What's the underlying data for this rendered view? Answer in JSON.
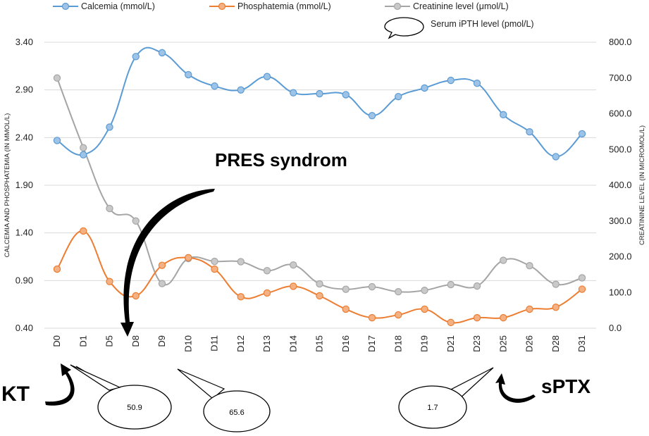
{
  "chart_data": {
    "type": "line",
    "categories": [
      "D0",
      "D1",
      "D5",
      "D8",
      "D9",
      "D10",
      "D11",
      "D12",
      "D13",
      "D14",
      "D15",
      "D16",
      "D17",
      "D18",
      "D19",
      "D21",
      "D23",
      "D25",
      "D26",
      "D28",
      "D31"
    ],
    "y_left": {
      "label": "CALCEMIA AND PHOSPHATEMIA (IN MMOL/L)",
      "min": 0.4,
      "max": 3.4,
      "ticks": [
        0.4,
        0.9,
        1.4,
        1.9,
        2.4,
        2.9,
        3.4
      ],
      "tick_labels": [
        "0.40",
        "0.90",
        "1.40",
        "1.90",
        "2.40",
        "2.90",
        "3.40"
      ]
    },
    "y_right": {
      "label": "CREATININE LEVEL (IN MICROMOL/L)",
      "min": 0,
      "max": 800,
      "ticks": [
        0,
        100,
        200,
        300,
        400,
        500,
        600,
        700,
        800
      ],
      "tick_labels": [
        "0.0",
        "100.0",
        "200.0",
        "300.0",
        "400.0",
        "500.0",
        "600.0",
        "700.0",
        "800.0"
      ]
    },
    "grid": "horizontal",
    "legend_position": "top",
    "series": [
      {
        "name": "Calcemia (mmol/L)",
        "axis": "left",
        "color": "#5B9BD5",
        "marker_fill": "#9DC3E6",
        "values": [
          2.37,
          2.22,
          2.51,
          3.25,
          3.29,
          3.06,
          2.94,
          2.9,
          3.04,
          2.87,
          2.86,
          2.85,
          2.63,
          2.83,
          2.92,
          3.0,
          2.97,
          2.64,
          2.46,
          2.2,
          2.44
        ]
      },
      {
        "name": "Phosphatemia (mmol/L)",
        "axis": "left",
        "color": "#ED7D31",
        "marker_fill": "#F4B183",
        "values": [
          1.02,
          1.42,
          0.89,
          0.74,
          1.06,
          1.14,
          1.02,
          0.73,
          0.77,
          0.84,
          0.74,
          0.6,
          0.51,
          0.54,
          0.6,
          0.46,
          0.51,
          0.51,
          0.6,
          0.62,
          0.81
        ]
      },
      {
        "name": "Creatinine level (μmol/L)",
        "axis": "right",
        "color": "#A5A5A5",
        "marker_fill": "#C9C9C9",
        "values": [
          700,
          505,
          335,
          300,
          125,
          195,
          187,
          186,
          161,
          177,
          124,
          109,
          116,
          102,
          106,
          122,
          118,
          190,
          175,
          123,
          141
        ]
      }
    ],
    "legend_bubble_label": "Serum iPTH level (pmol/L)"
  },
  "annotations": {
    "pres": "PRES syndrom",
    "kt": "KT",
    "sptx": "sPTX",
    "bubbles": [
      "50.9",
      "65.6",
      "1.7"
    ]
  }
}
